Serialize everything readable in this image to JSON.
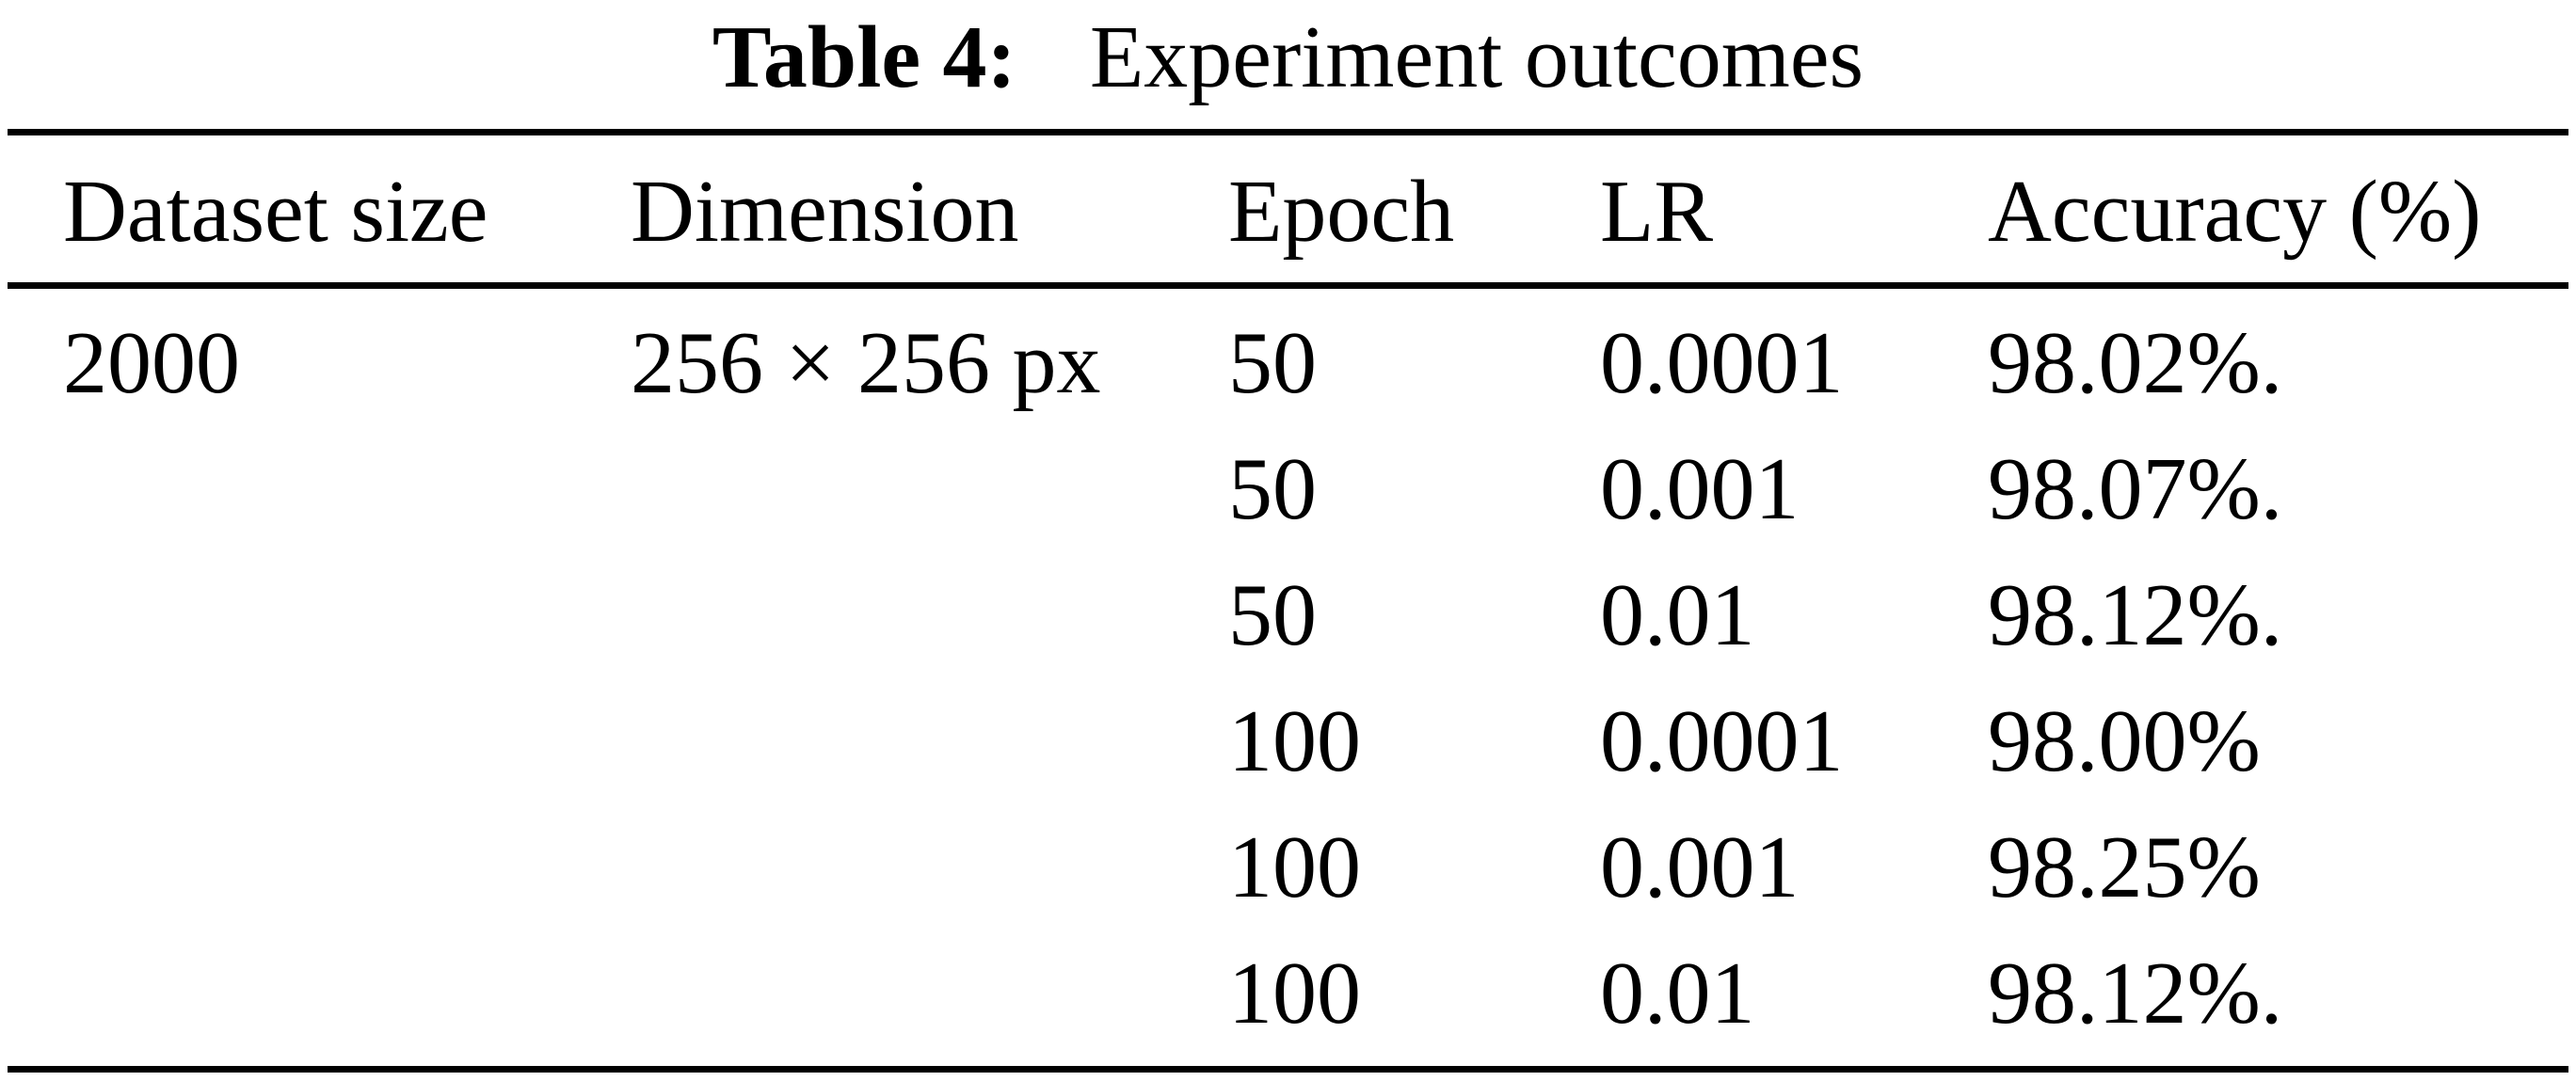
{
  "caption": {
    "label": "Table 4:",
    "title": "Experiment outcomes"
  },
  "table": {
    "columns": {
      "dataset_size": "Dataset size",
      "dimension": "Dimension",
      "epoch": "Epoch",
      "lr": "LR",
      "accuracy": "Accuracy (%)"
    },
    "rows": [
      {
        "dataset_size": "2000",
        "dimension": "256 × 256 px",
        "epoch": "50",
        "lr": "0.0001",
        "accuracy": "98.02%."
      },
      {
        "dataset_size": "",
        "dimension": "",
        "epoch": "50",
        "lr": "0.001",
        "accuracy": "98.07%."
      },
      {
        "dataset_size": "",
        "dimension": "",
        "epoch": "50",
        "lr": "0.01",
        "accuracy": "98.12%."
      },
      {
        "dataset_size": "",
        "dimension": "",
        "epoch": "100",
        "lr": "0.0001",
        "accuracy": "98.00%"
      },
      {
        "dataset_size": "",
        "dimension": "",
        "epoch": "100",
        "lr": "0.001",
        "accuracy": "98.25%"
      },
      {
        "dataset_size": "",
        "dimension": "",
        "epoch": "100",
        "lr": "0.01",
        "accuracy": "98.12%."
      }
    ]
  },
  "colors": {
    "background": "#ffffff",
    "text": "#000000",
    "rule": "#000000"
  }
}
